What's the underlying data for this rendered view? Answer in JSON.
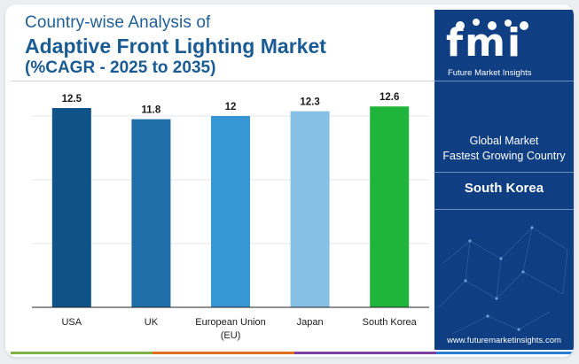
{
  "title": {
    "line1": "Country-wise Analysis of",
    "line2": "Adaptive Front Lighting Market",
    "line3": "(%CAGR - 2025 to 2035)"
  },
  "chart_data": {
    "type": "bar",
    "categories": [
      "USA",
      "UK",
      "European Union (EU)",
      "Japan",
      "South Korea"
    ],
    "category_lines": [
      [
        "USA"
      ],
      [
        "UK"
      ],
      [
        "European Union",
        "(EU)"
      ],
      [
        "Japan"
      ],
      [
        "South Korea"
      ]
    ],
    "values": [
      12.5,
      11.8,
      12,
      12.3,
      12.6
    ],
    "value_labels": [
      "12.5",
      "11.8",
      "12",
      "12.3",
      "12.6"
    ],
    "bar_colors": [
      "#0f5287",
      "#1f6ea9",
      "#3796d4",
      "#86c1e5",
      "#1fb53a"
    ],
    "ylim": [
      0,
      14
    ],
    "grid": true,
    "title": "",
    "xlabel": "",
    "ylabel": ""
  },
  "side_panel": {
    "logo_text": "fmi",
    "logo_subtitle": "Future Market Insights",
    "label_line1": "Global Market",
    "label_line2": "Fastest Growing Country",
    "country": "South Korea",
    "website": "www.futuremarketinsights.com"
  },
  "colors": {
    "title": "#1b5b94",
    "panel": "#0f3e82",
    "footer": [
      "#7cb342",
      "#e0701f",
      "#7b3fa0",
      "#2a7fd4"
    ]
  }
}
